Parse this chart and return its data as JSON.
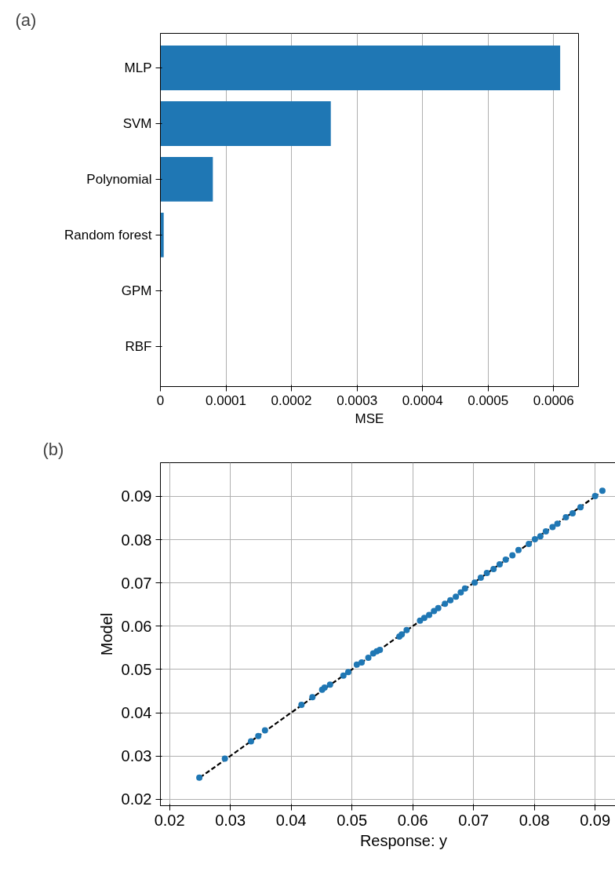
{
  "chart_data": [
    {
      "type": "bar",
      "title": "(a)",
      "orientation": "horizontal",
      "xlabel": "MSE",
      "categories": [
        "MLP",
        "SVM",
        "Polynomial",
        "Random forest",
        "GPM",
        "RBF"
      ],
      "values": [
        0.00061,
        0.00026,
        8e-05,
        5e-06,
        0,
        0
      ],
      "color": "#1f77b4",
      "xlim": [
        0,
        0.000638
      ],
      "xticks": [
        0,
        0.0001,
        0.0002,
        0.0003,
        0.0004,
        0.0005,
        0.0006
      ],
      "grid": "x"
    },
    {
      "type": "scatter",
      "title": "(b)",
      "xlabel": "Response: y",
      "ylabel": "Model",
      "xlim": [
        0.0185,
        0.0985
      ],
      "ylim": [
        0.0185,
        0.0978
      ],
      "xticks": [
        0.02,
        0.03,
        0.04,
        0.05,
        0.06,
        0.07,
        0.08,
        0.09
      ],
      "yticks": [
        0.02,
        0.03,
        0.04,
        0.05,
        0.06,
        0.07,
        0.08,
        0.09
      ],
      "grid": true,
      "marker": "circle",
      "series": [
        {
          "type": "line",
          "color": "#000000",
          "line_style": "dashed",
          "marker": "none",
          "x": [
            0.025,
            0.0905
          ],
          "values": [
            0.025,
            0.0905
          ]
        },
        {
          "type": "scatter",
          "color": "#1f77b4",
          "x": [
            0.0249,
            0.0291,
            0.0334,
            0.0346,
            0.0357,
            0.0417,
            0.0435,
            0.0451,
            0.0455,
            0.0464,
            0.0486,
            0.0494,
            0.0508,
            0.0516,
            0.0527,
            0.0535,
            0.0541,
            0.0546,
            0.0578,
            0.0582,
            0.059,
            0.0612,
            0.0619,
            0.0627,
            0.0635,
            0.0642,
            0.0653,
            0.0662,
            0.0671,
            0.0679,
            0.0686,
            0.0702,
            0.0712,
            0.0722,
            0.0733,
            0.0743,
            0.0753,
            0.0764,
            0.0774,
            0.0791,
            0.0801,
            0.081,
            0.0819,
            0.083,
            0.0838,
            0.0852,
            0.0863,
            0.0876,
            0.09,
            0.0912
          ],
          "values": [
            0.025,
            0.0294,
            0.0334,
            0.0346,
            0.0359,
            0.0418,
            0.0436,
            0.0453,
            0.0458,
            0.0465,
            0.0486,
            0.0494,
            0.0511,
            0.0516,
            0.0527,
            0.0537,
            0.0542,
            0.0545,
            0.0576,
            0.0581,
            0.0591,
            0.0613,
            0.0619,
            0.0626,
            0.0635,
            0.0642,
            0.0652,
            0.066,
            0.0668,
            0.0678,
            0.0687,
            0.0701,
            0.0712,
            0.0723,
            0.0732,
            0.0743,
            0.0754,
            0.0764,
            0.0776,
            0.079,
            0.0801,
            0.0808,
            0.0819,
            0.0829,
            0.0837,
            0.0852,
            0.0861,
            0.0875,
            0.0901,
            0.0913
          ]
        }
      ]
    }
  ]
}
